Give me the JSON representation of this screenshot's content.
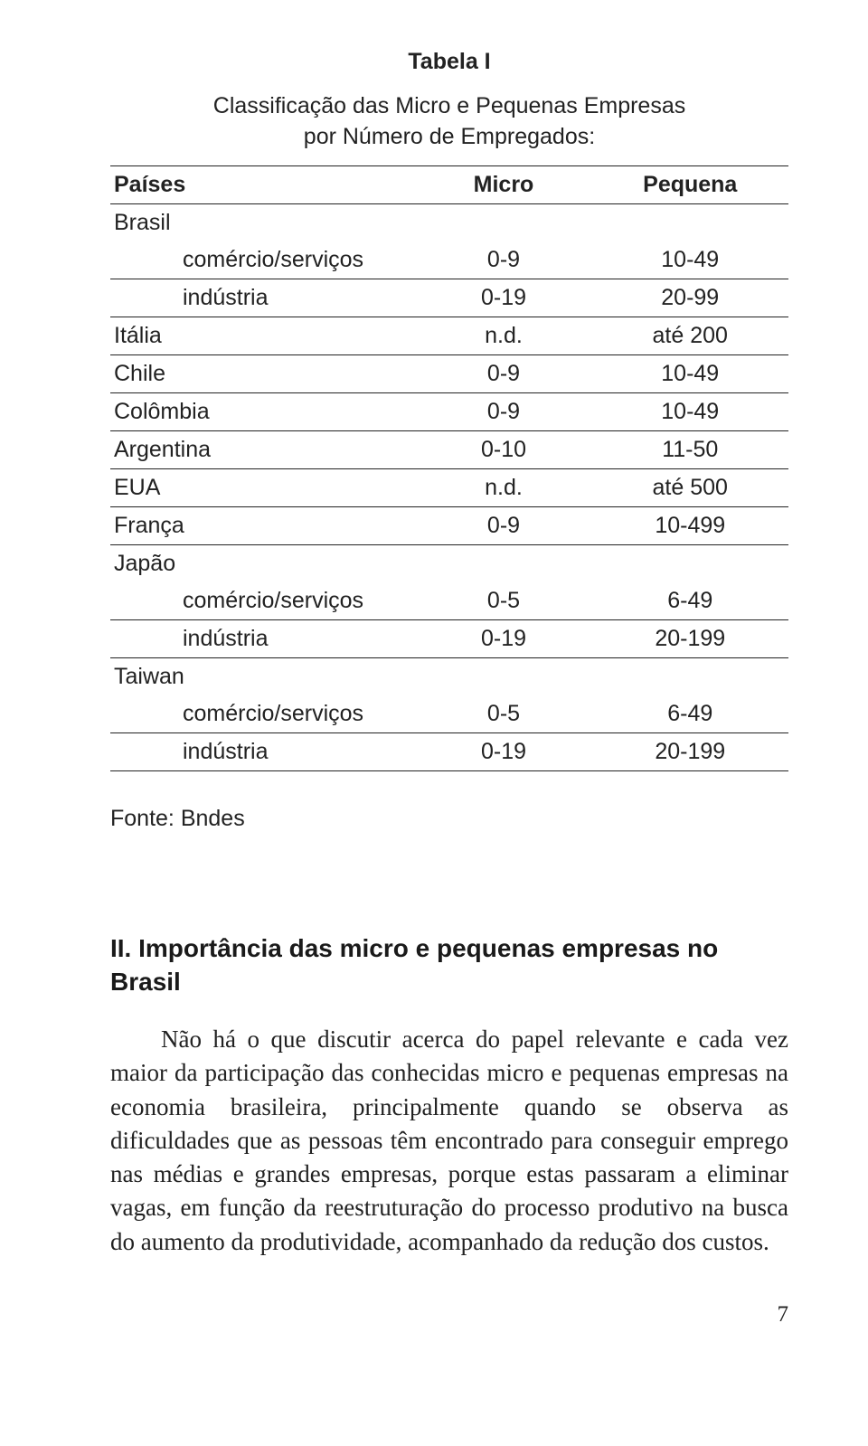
{
  "table": {
    "title": "Tabela I",
    "caption_l1": "Classificação das Micro e Pequenas Empresas",
    "caption_l2": "por Número de Empregados:",
    "headers": {
      "col0": "Países",
      "col1": "Micro",
      "col2": "Pequena"
    },
    "rows": [
      {
        "c0": "Brasil",
        "c1": "",
        "c2": "",
        "indent": false
      },
      {
        "c0": "comércio/serviços",
        "c1": "0-9",
        "c2": "10-49",
        "indent": true
      },
      {
        "c0": "indústria",
        "c1": "0-19",
        "c2": "20-99",
        "indent": true
      },
      {
        "c0": "Itália",
        "c1": "n.d.",
        "c2": "até 200",
        "indent": false
      },
      {
        "c0": "Chile",
        "c1": "0-9",
        "c2": "10-49",
        "indent": false
      },
      {
        "c0": "Colômbia",
        "c1": "0-9",
        "c2": "10-49",
        "indent": false
      },
      {
        "c0": "Argentina",
        "c1": "0-10",
        "c2": "11-50",
        "indent": false
      },
      {
        "c0": "EUA",
        "c1": "n.d.",
        "c2": "até 500",
        "indent": false
      },
      {
        "c0": "França",
        "c1": "0-9",
        "c2": "10-499",
        "indent": false
      },
      {
        "c0": "Japão",
        "c1": "",
        "c2": "",
        "indent": false
      },
      {
        "c0": "comércio/serviços",
        "c1": "0-5",
        "c2": "6-49",
        "indent": true
      },
      {
        "c0": "indústria",
        "c1": "0-19",
        "c2": "20-199",
        "indent": true
      },
      {
        "c0": "Taiwan",
        "c1": "",
        "c2": "",
        "indent": false
      },
      {
        "c0": "comércio/serviços",
        "c1": "0-5",
        "c2": "6-49",
        "indent": true
      },
      {
        "c0": "indústria",
        "c1": "0-19",
        "c2": "20-199",
        "indent": true
      }
    ],
    "source": "Fonte: Bndes"
  },
  "section": {
    "heading": "II. Importância das micro e pequenas empresas no Brasil",
    "paragraph": "Não há o que discutir acerca do papel relevante e cada vez maior da participação das conhecidas micro e pequenas empresas na economia brasileira, principalmente quando se observa as dificuldades que as pessoas têm encontrado para conseguir emprego nas médias e grandes empresas, porque estas passaram a eliminar vagas, em função  da reestruturação do processo produtivo na busca do  aumento da produtividade, acompanhado da redução dos custos."
  },
  "page_number": "7"
}
